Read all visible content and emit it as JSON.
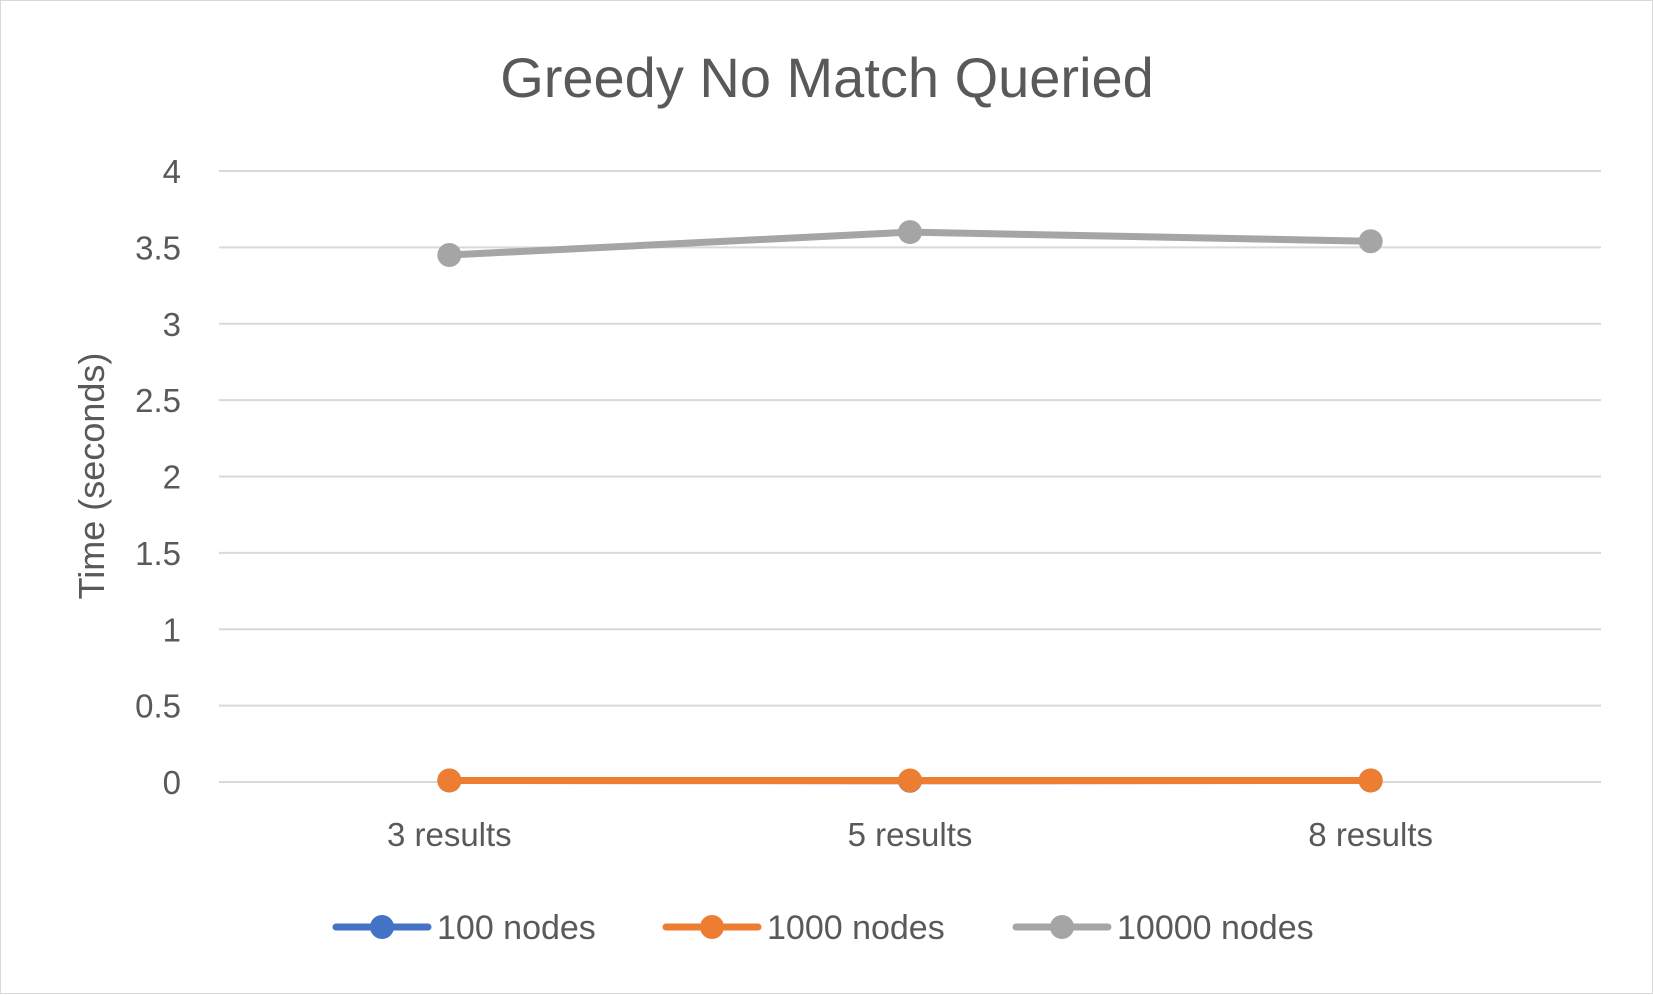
{
  "chart_data": {
    "type": "line",
    "title": "Greedy No Match Queried",
    "xlabel": "",
    "ylabel": "Time (seconds)",
    "categories": [
      "3 results",
      "5 results",
      "8 results"
    ],
    "ylim": [
      0,
      4
    ],
    "yticks": [
      "0",
      "0.5",
      "1",
      "1.5",
      "2",
      "2.5",
      "3",
      "3.5",
      "4"
    ],
    "grid": true,
    "legend": "bottom",
    "series": [
      {
        "name": "100 nodes",
        "color": "#4472c4",
        "values": [
          0.01,
          0.008,
          0.01
        ]
      },
      {
        "name": "1000 nodes",
        "color": "#ed7d31",
        "values": [
          0.01,
          0.01,
          0.01
        ]
      },
      {
        "name": "10000 nodes",
        "color": "#a5a5a5",
        "values": [
          3.45,
          3.6,
          3.54
        ]
      }
    ]
  }
}
